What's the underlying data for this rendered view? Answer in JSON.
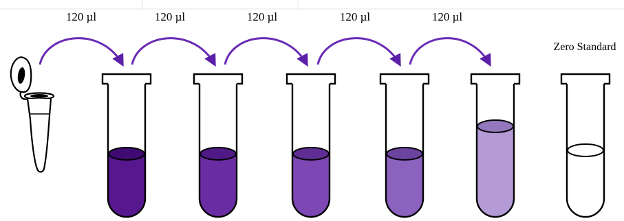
{
  "transfer_volume": "120 µl",
  "transfers": [
    {
      "label": "120 µl"
    },
    {
      "label": "120 µl"
    },
    {
      "label": "120 µl"
    },
    {
      "label": "120 µl"
    },
    {
      "label": "120 µl"
    }
  ],
  "zero_standard_label": "Zero Standard",
  "colors": {
    "arrow": "#6a2bb5",
    "outline": "#000000",
    "tube_fills": [
      "#56178f",
      "#6a2ca3",
      "#7d47b4",
      "#8c62bf",
      "#b49bd6",
      "#ffffff"
    ],
    "tube_tops": [
      "#3f0a72",
      "#4f1a86",
      "#5e2e95",
      "#6c44a0",
      "#9277bd",
      "#ffffff"
    ]
  },
  "tubes": [
    {
      "id": "tube-1",
      "fill_color_index": 0
    },
    {
      "id": "tube-2",
      "fill_color_index": 1
    },
    {
      "id": "tube-3",
      "fill_color_index": 2
    },
    {
      "id": "tube-4",
      "fill_color_index": 3
    },
    {
      "id": "tube-5",
      "fill_color_index": 4
    },
    {
      "id": "tube-zero-standard",
      "fill_color_index": 5
    }
  ]
}
